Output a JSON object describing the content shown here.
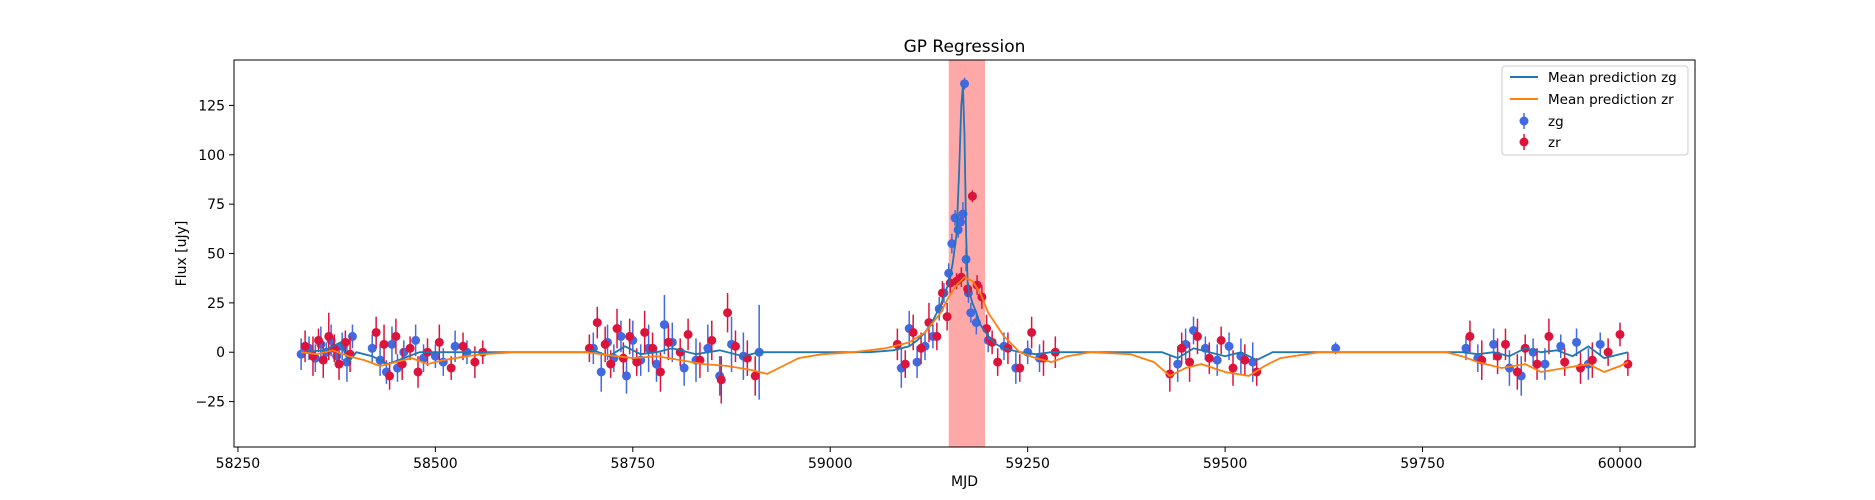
{
  "chart_data": {
    "type": "scatter",
    "title": "GP Regression",
    "xlabel": "MJD",
    "ylabel": "Flux [uJy]",
    "xlim": [
      58245,
      60095
    ],
    "ylim": [
      -48,
      148
    ],
    "xticks": [
      58250,
      58500,
      58750,
      59000,
      59250,
      59500,
      59750,
      60000
    ],
    "yticks": [
      -25,
      0,
      25,
      50,
      75,
      100,
      125
    ],
    "highlight_region": {
      "x0": 59150,
      "x1": 59196,
      "color": "#ff9999"
    },
    "legend": {
      "location": "upper right",
      "entries": [
        "Mean prediction zg",
        "Mean prediction zr",
        "zg",
        "zr"
      ]
    },
    "colors": {
      "zg_line": "#1f77b4",
      "zr_line": "#ff7f0e",
      "zg_points": "#4169e1",
      "zr_points": "#dc143c"
    },
    "series": [
      {
        "name": "Mean prediction zg",
        "kind": "line",
        "x": [
          58330,
          58360,
          58370,
          58380,
          58390,
          58400,
          58420,
          58440,
          58460,
          58480,
          58500,
          58530,
          58560,
          58600,
          58650,
          58690,
          58700,
          58720,
          58740,
          58760,
          58780,
          58800,
          58830,
          58860,
          58890,
          58910,
          58930,
          58960,
          59000,
          59050,
          59080,
          59100,
          59110,
          59120,
          59130,
          59140,
          59150,
          59155,
          59160,
          59163,
          59166,
          59168,
          59170,
          59172,
          59174,
          59176,
          59178,
          59180,
          59185,
          59190,
          59200,
          59210,
          59220,
          59240,
          59260,
          59280,
          59300,
          59350,
          59400,
          59420,
          59440,
          59460,
          59480,
          59500,
          59520,
          59540,
          59560,
          59600,
          59640,
          59700,
          59750,
          59800,
          59820,
          59840,
          59860,
          59880,
          59900,
          59920,
          59940,
          59960,
          59980,
          60010
        ],
        "y": [
          0,
          1,
          3,
          5,
          -5,
          0,
          -2,
          -6,
          -3,
          0,
          0,
          0,
          0,
          0,
          0,
          0,
          1,
          -2,
          3,
          -1,
          0,
          2,
          -1,
          1,
          -2,
          0,
          0,
          0,
          0,
          0,
          1,
          3,
          6,
          10,
          16,
          24,
          35,
          45,
          60,
          90,
          125,
          135,
          110,
          60,
          35,
          30,
          28,
          25,
          20,
          14,
          8,
          4,
          2,
          0,
          -1,
          0,
          0,
          0,
          0,
          0,
          -3,
          2,
          0,
          -2,
          0,
          -4,
          0,
          0,
          0,
          0,
          0,
          0,
          -1,
          0,
          -2,
          2,
          0,
          1,
          -2,
          3,
          -3,
          0
        ]
      },
      {
        "name": "Mean prediction zr",
        "kind": "line",
        "x": [
          58330,
          58350,
          58370,
          58390,
          58410,
          58430,
          58450,
          58470,
          58490,
          58510,
          58540,
          58560,
          58600,
          58650,
          58690,
          58710,
          58730,
          58750,
          58780,
          58810,
          58840,
          58870,
          58900,
          58920,
          58940,
          58960,
          58990,
          59030,
          59070,
          59100,
          59120,
          59140,
          59150,
          59160,
          59170,
          59180,
          59190,
          59200,
          59220,
          59240,
          59260,
          59280,
          59300,
          59330,
          59380,
          59410,
          59430,
          59450,
          59470,
          59500,
          59530,
          59550,
          59570,
          59620,
          59700,
          59780,
          59800,
          59820,
          59850,
          59880,
          59900,
          59930,
          59960,
          59980,
          60000,
          60010
        ],
        "y": [
          0,
          -1,
          1,
          -2,
          -4,
          -7,
          -5,
          -3,
          -6,
          -4,
          -2,
          -1,
          0,
          0,
          0,
          -1,
          -2,
          -3,
          -2,
          -4,
          -6,
          -7,
          -9,
          -11,
          -7,
          -3,
          -1,
          0,
          2,
          5,
          10,
          20,
          28,
          34,
          38,
          36,
          30,
          20,
          8,
          0,
          -3,
          -5,
          -2,
          0,
          -1,
          -5,
          -12,
          -8,
          -6,
          -10,
          -12,
          -7,
          -3,
          0,
          0,
          0,
          -2,
          -5,
          -8,
          -6,
          -10,
          -8,
          -6,
          -10,
          -7,
          -5
        ]
      },
      {
        "name": "zg",
        "kind": "errorbar",
        "x": [
          58330,
          58340,
          58348,
          58355,
          58362,
          58368,
          58375,
          58382,
          58388,
          58395,
          58420,
          58430,
          58438,
          58445,
          58452,
          58460,
          58475,
          58485,
          58500,
          58510,
          58525,
          58540,
          58700,
          58710,
          58718,
          58726,
          58735,
          58742,
          58750,
          58760,
          58770,
          58780,
          58790,
          58800,
          58815,
          58830,
          58845,
          58860,
          58875,
          58890,
          58910,
          59090,
          59100,
          59110,
          59120,
          59130,
          59138,
          59144,
          59150,
          59154,
          59158,
          59162,
          59165,
          59168,
          59170,
          59172,
          59175,
          59178,
          59185,
          59200,
          59220,
          59235,
          59250,
          59265,
          59440,
          59450,
          59460,
          59475,
          59490,
          59505,
          59520,
          59535,
          59640,
          59805,
          59820,
          59840,
          59860,
          59875,
          59890,
          59905,
          59925,
          59945,
          59960,
          59975
        ],
        "y": [
          -1,
          2,
          -3,
          4,
          0,
          6,
          -2,
          3,
          -5,
          8,
          2,
          -4,
          -10,
          4,
          -8,
          0,
          6,
          -3,
          -2,
          -5,
          3,
          0,
          2,
          -10,
          5,
          -3,
          8,
          -12,
          6,
          -4,
          2,
          -6,
          14,
          5,
          -8,
          -4,
          2,
          -12,
          4,
          -2,
          0,
          -8,
          12,
          -5,
          3,
          8,
          22,
          30,
          40,
          55,
          68,
          62,
          66,
          70,
          136,
          47,
          30,
          20,
          15,
          6,
          3,
          -8,
          0,
          -3,
          -6,
          4,
          11,
          2,
          -4,
          3,
          -2,
          -5,
          2,
          2,
          -3,
          4,
          -8,
          -12,
          0,
          -6,
          3,
          5,
          -6,
          4
        ],
        "err": [
          8,
          6,
          7,
          9,
          5,
          8,
          6,
          7,
          10,
          6,
          7,
          8,
          6,
          9,
          7,
          6,
          8,
          7,
          6,
          7,
          8,
          6,
          8,
          10,
          9,
          7,
          8,
          9,
          10,
          8,
          12,
          9,
          15,
          10,
          9,
          11,
          12,
          10,
          14,
          12,
          24,
          10,
          9,
          8,
          7,
          6,
          6,
          5,
          5,
          5,
          4,
          4,
          5,
          6,
          3,
          6,
          5,
          5,
          6,
          6,
          7,
          8,
          6,
          7,
          9,
          8,
          7,
          6,
          8,
          7,
          9,
          10,
          3,
          6,
          7,
          8,
          9,
          10,
          7,
          8,
          6,
          7,
          8,
          6
        ]
      },
      {
        "name": "zr",
        "kind": "errorbar",
        "x": [
          58335,
          58345,
          58352,
          58358,
          58365,
          58372,
          58378,
          58386,
          58392,
          58425,
          58435,
          58442,
          58450,
          58458,
          58468,
          58478,
          58490,
          58505,
          58520,
          58535,
          58550,
          58560,
          58695,
          58705,
          58715,
          58722,
          58730,
          58738,
          58746,
          58755,
          58765,
          58775,
          58785,
          58795,
          58810,
          58820,
          58835,
          58850,
          58862,
          58870,
          58880,
          58895,
          58905,
          59085,
          59095,
          59105,
          59115,
          59125,
          59135,
          59142,
          59148,
          59152,
          59160,
          59166,
          59174,
          59180,
          59186,
          59192,
          59198,
          59205,
          59212,
          59225,
          59240,
          59255,
          59270,
          59285,
          59430,
          59445,
          59455,
          59465,
          59480,
          59495,
          59510,
          59525,
          59540,
          59810,
          59825,
          59845,
          59855,
          59870,
          59880,
          59895,
          59910,
          59930,
          59950,
          59965,
          59985,
          60000,
          60010
        ],
        "y": [
          3,
          -2,
          6,
          -4,
          8,
          2,
          -6,
          5,
          -1,
          10,
          4,
          -12,
          8,
          -6,
          2,
          -10,
          0,
          5,
          -8,
          3,
          -5,
          0,
          2,
          15,
          4,
          -6,
          12,
          -3,
          8,
          -5,
          10,
          2,
          -10,
          5,
          0,
          9,
          -4,
          6,
          -14,
          20,
          3,
          -3,
          -12,
          4,
          -6,
          10,
          2,
          15,
          8,
          30,
          18,
          35,
          36,
          38,
          32,
          79,
          34,
          28,
          12,
          5,
          -5,
          2,
          -8,
          10,
          -3,
          0,
          -11,
          2,
          -5,
          8,
          -3,
          6,
          -8,
          -4,
          -10,
          8,
          -4,
          -2,
          4,
          -10,
          2,
          -6,
          8,
          -5,
          -8,
          -4,
          0,
          9,
          -6
        ],
        "err": [
          8,
          10,
          6,
          9,
          12,
          7,
          8,
          6,
          9,
          8,
          10,
          7,
          9,
          8,
          6,
          8,
          7,
          9,
          6,
          7,
          8,
          6,
          7,
          8,
          9,
          7,
          10,
          8,
          9,
          7,
          11,
          8,
          10,
          9,
          7,
          8,
          9,
          10,
          12,
          10,
          8,
          9,
          10,
          8,
          7,
          9,
          8,
          10,
          7,
          6,
          7,
          5,
          4,
          5,
          4,
          3,
          5,
          6,
          7,
          6,
          7,
          8,
          7,
          8,
          9,
          8,
          9,
          8,
          10,
          9,
          8,
          7,
          9,
          8,
          7,
          8,
          10,
          9,
          8,
          9,
          7,
          8,
          9,
          7,
          8,
          9,
          7,
          6,
          6
        ]
      }
    ]
  }
}
